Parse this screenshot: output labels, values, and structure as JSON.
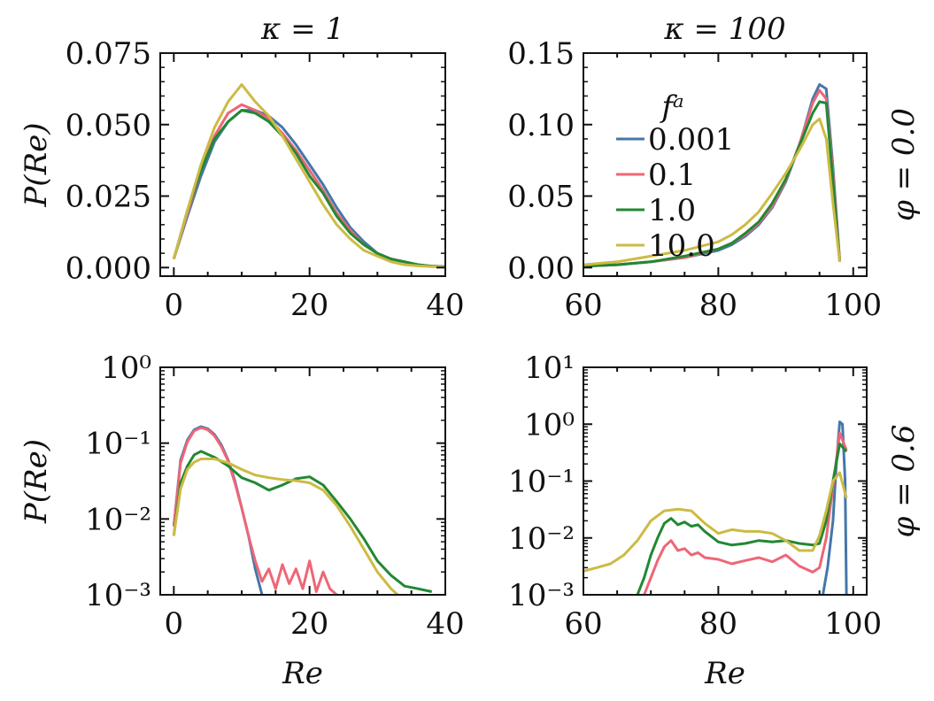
{
  "chart_data": [
    {
      "type": "line",
      "title": "κ = 1",
      "row_label": "",
      "xlabel": "",
      "ylabel": "P(Re)",
      "xlim": [
        -2,
        40
      ],
      "ylim": [
        -0.003,
        0.075
      ],
      "yscale": "linear",
      "xticks": [
        "0",
        "20",
        "40"
      ],
      "yticks": [
        "0.000",
        "0.025",
        "0.050",
        "0.075"
      ],
      "series": [
        {
          "name": "0.001",
          "x": [
            0,
            2,
            4,
            6,
            8,
            10,
            12,
            14,
            16,
            18,
            20,
            22,
            24,
            26,
            28,
            30,
            32,
            34,
            36,
            38,
            40
          ],
          "values": [
            0.003,
            0.018,
            0.032,
            0.044,
            0.051,
            0.055,
            0.055,
            0.053,
            0.049,
            0.043,
            0.036,
            0.029,
            0.021,
            0.014,
            0.009,
            0.005,
            0.003,
            0.002,
            0.001,
            0.0005,
            0.0003
          ]
        },
        {
          "name": "0.1",
          "x": [
            0,
            2,
            4,
            6,
            8,
            10,
            12,
            14,
            16,
            18,
            20,
            22,
            24,
            26,
            28,
            30,
            32,
            34,
            36,
            38,
            40
          ],
          "values": [
            0.003,
            0.019,
            0.034,
            0.046,
            0.054,
            0.057,
            0.055,
            0.052,
            0.047,
            0.041,
            0.034,
            0.027,
            0.019,
            0.013,
            0.008,
            0.005,
            0.003,
            0.002,
            0.001,
            0.0005,
            0.0003
          ]
        },
        {
          "name": "1.0",
          "x": [
            0,
            2,
            4,
            6,
            8,
            10,
            12,
            14,
            16,
            18,
            20,
            22,
            24,
            26,
            28,
            30,
            32,
            34,
            36,
            38,
            40
          ],
          "values": [
            0.003,
            0.02,
            0.034,
            0.045,
            0.051,
            0.055,
            0.054,
            0.051,
            0.046,
            0.04,
            0.032,
            0.026,
            0.018,
            0.012,
            0.008,
            0.005,
            0.003,
            0.002,
            0.001,
            0.0005,
            0.0003
          ]
        },
        {
          "name": "10.0",
          "x": [
            0,
            2,
            4,
            6,
            8,
            10,
            12,
            14,
            16,
            18,
            20,
            22,
            24,
            26,
            28,
            30,
            32,
            34,
            36,
            38,
            40
          ],
          "values": [
            0.003,
            0.02,
            0.036,
            0.049,
            0.058,
            0.064,
            0.058,
            0.053,
            0.046,
            0.038,
            0.03,
            0.022,
            0.015,
            0.01,
            0.006,
            0.004,
            0.002,
            0.001,
            0.0006,
            0.0003,
            0.0002
          ]
        }
      ]
    },
    {
      "type": "line",
      "title": "κ = 100",
      "row_label": "φ = 0.0",
      "xlabel": "",
      "ylabel": "",
      "xlim": [
        60,
        102
      ],
      "ylim": [
        -0.006,
        0.15
      ],
      "yscale": "linear",
      "xticks": [
        "60",
        "80",
        "100"
      ],
      "yticks": [
        "0.00",
        "0.05",
        "0.10",
        "0.15"
      ],
      "series": [
        {
          "name": "0.001",
          "x": [
            60,
            65,
            70,
            75,
            80,
            82,
            84,
            86,
            88,
            90,
            92,
            94,
            95,
            96,
            97,
            98
          ],
          "values": [
            0.001,
            0.002,
            0.004,
            0.007,
            0.012,
            0.016,
            0.022,
            0.03,
            0.042,
            0.06,
            0.085,
            0.118,
            0.128,
            0.125,
            0.07,
            0.005
          ]
        },
        {
          "name": "0.1",
          "x": [
            60,
            65,
            70,
            75,
            80,
            82,
            84,
            86,
            88,
            90,
            92,
            94,
            95,
            96,
            97,
            98
          ],
          "values": [
            0.001,
            0.002,
            0.004,
            0.007,
            0.013,
            0.017,
            0.023,
            0.031,
            0.043,
            0.061,
            0.086,
            0.115,
            0.124,
            0.118,
            0.065,
            0.005
          ]
        },
        {
          "name": "1.0",
          "x": [
            60,
            65,
            70,
            75,
            80,
            82,
            84,
            86,
            88,
            90,
            92,
            94,
            95,
            96,
            97,
            98
          ],
          "values": [
            0.001,
            0.002,
            0.004,
            0.008,
            0.013,
            0.017,
            0.024,
            0.032,
            0.045,
            0.062,
            0.085,
            0.108,
            0.116,
            0.115,
            0.06,
            0.004
          ]
        },
        {
          "name": "10.0",
          "x": [
            60,
            65,
            70,
            75,
            80,
            82,
            84,
            86,
            88,
            90,
            92,
            94,
            95,
            96,
            97,
            98
          ],
          "values": [
            0.002,
            0.004,
            0.008,
            0.012,
            0.018,
            0.023,
            0.03,
            0.039,
            0.052,
            0.066,
            0.082,
            0.1,
            0.104,
            0.09,
            0.045,
            0.004
          ]
        }
      ],
      "legend": {
        "title": "fᵃ",
        "placement": "upper-left"
      }
    },
    {
      "type": "line",
      "title": "",
      "row_label": "",
      "xlabel": "Re",
      "ylabel": "P(Re)",
      "xlim": [
        -2,
        40
      ],
      "ylim": [
        0.001,
        1
      ],
      "yscale": "log",
      "xticks": [
        "0",
        "20",
        "40"
      ],
      "yticks": [
        "10⁻³",
        "10⁻²",
        "10⁻¹",
        "10⁰"
      ],
      "series": [
        {
          "name": "0.001",
          "x": [
            0,
            1,
            2,
            3,
            4,
            5,
            6,
            7,
            8,
            9,
            10,
            11,
            12,
            13
          ],
          "values": [
            0.008,
            0.06,
            0.11,
            0.15,
            0.165,
            0.155,
            0.13,
            0.095,
            0.06,
            0.032,
            0.014,
            0.006,
            0.0022,
            0.001
          ]
        },
        {
          "name": "0.1",
          "x": [
            0,
            1,
            2,
            3,
            4,
            5,
            6,
            7,
            8,
            9,
            10,
            11,
            12,
            13,
            14,
            15,
            16,
            17,
            18,
            19,
            20,
            21,
            22,
            23,
            24
          ],
          "values": [
            0.008,
            0.055,
            0.105,
            0.145,
            0.16,
            0.15,
            0.125,
            0.09,
            0.058,
            0.03,
            0.014,
            0.006,
            0.0028,
            0.0015,
            0.0022,
            0.0012,
            0.0025,
            0.0014,
            0.0022,
            0.0012,
            0.0028,
            0.0011,
            0.002,
            0.0012,
            0.001
          ]
        },
        {
          "name": "1.0",
          "x": [
            0,
            1,
            2,
            3,
            4,
            6,
            8,
            10,
            12,
            14,
            16,
            18,
            20,
            22,
            24,
            26,
            28,
            30,
            32,
            34,
            36,
            38
          ],
          "values": [
            0.006,
            0.03,
            0.05,
            0.07,
            0.078,
            0.065,
            0.05,
            0.035,
            0.03,
            0.024,
            0.028,
            0.034,
            0.036,
            0.028,
            0.017,
            0.01,
            0.0055,
            0.0028,
            0.0018,
            0.0013,
            0.0012,
            0.0011
          ]
        },
        {
          "name": "10.0",
          "x": [
            0,
            1,
            2,
            3,
            4,
            6,
            8,
            10,
            12,
            14,
            16,
            18,
            20,
            22,
            24,
            26,
            28,
            30,
            32,
            33
          ],
          "values": [
            0.006,
            0.025,
            0.045,
            0.056,
            0.062,
            0.062,
            0.055,
            0.045,
            0.038,
            0.035,
            0.033,
            0.032,
            0.03,
            0.024,
            0.015,
            0.008,
            0.004,
            0.002,
            0.0012,
            0.001
          ]
        }
      ]
    },
    {
      "type": "line",
      "title": "",
      "row_label": "φ = 0.6",
      "xlabel": "Re",
      "ylabel": "",
      "xlim": [
        60,
        102
      ],
      "ylim": [
        0.001,
        10
      ],
      "yscale": "log",
      "xticks": [
        "60",
        "80",
        "100"
      ],
      "yticks": [
        "10⁻³",
        "10⁻²",
        "10⁻¹",
        "10⁰",
        "10¹"
      ],
      "series": [
        {
          "name": "0.001",
          "x": [
            95.5,
            96.2,
            97,
            97.5,
            98,
            98.4,
            98.8,
            99
          ],
          "values": [
            0.001,
            0.003,
            0.02,
            0.2,
            1.1,
            1.0,
            0.1,
            0.001
          ]
        },
        {
          "name": "0.1",
          "x": [
            69,
            70,
            71,
            72,
            73,
            74,
            75,
            76,
            77,
            78,
            80,
            82,
            84,
            86,
            88,
            90,
            92,
            94,
            95,
            96,
            97,
            98,
            99
          ],
          "values": [
            0.001,
            0.002,
            0.004,
            0.007,
            0.009,
            0.006,
            0.0065,
            0.005,
            0.0055,
            0.0045,
            0.0042,
            0.0035,
            0.004,
            0.0045,
            0.0038,
            0.005,
            0.0032,
            0.0025,
            0.003,
            0.01,
            0.08,
            0.7,
            0.35
          ]
        },
        {
          "name": "1.0",
          "x": [
            68,
            69,
            70,
            71,
            72,
            73,
            74,
            75,
            76,
            77,
            78,
            80,
            82,
            84,
            86,
            88,
            90,
            92,
            94,
            95,
            96,
            97,
            98,
            99
          ],
          "values": [
            0.001,
            0.002,
            0.005,
            0.01,
            0.018,
            0.022,
            0.017,
            0.019,
            0.016,
            0.017,
            0.013,
            0.0085,
            0.0075,
            0.008,
            0.009,
            0.0085,
            0.009,
            0.008,
            0.0075,
            0.008,
            0.02,
            0.1,
            0.45,
            0.33
          ]
        },
        {
          "name": "10.0",
          "x": [
            60,
            62,
            64,
            66,
            68,
            70,
            72,
            74,
            76,
            78,
            80,
            82,
            84,
            86,
            88,
            90,
            92,
            94,
            95,
            96,
            97,
            98,
            99
          ],
          "values": [
            0.0026,
            0.003,
            0.0035,
            0.005,
            0.009,
            0.02,
            0.03,
            0.032,
            0.03,
            0.018,
            0.012,
            0.014,
            0.013,
            0.013,
            0.012,
            0.009,
            0.006,
            0.006,
            0.011,
            0.03,
            0.1,
            0.14,
            0.05
          ]
        }
      ]
    }
  ],
  "colors": {
    "0.001": "#4477aa",
    "0.1": "#ee6677",
    "1.0": "#228833",
    "10.0": "#ccbb44",
    "axis": "#111111",
    "background": "#ffffff"
  }
}
